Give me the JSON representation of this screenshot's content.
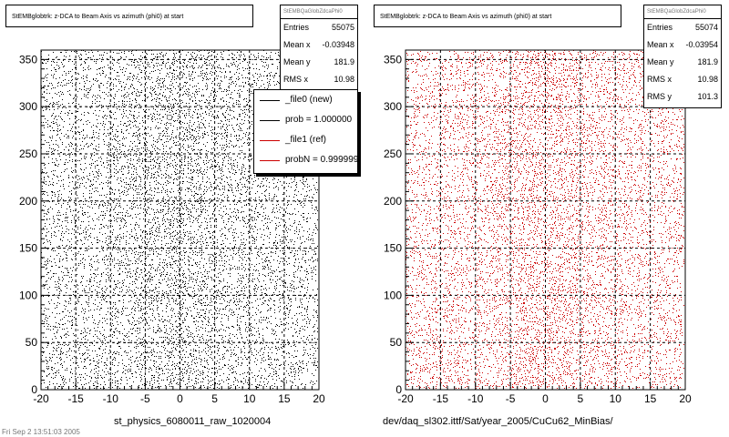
{
  "colors": {
    "new": "#000000",
    "ref": "#cc0000",
    "frame": "#000000"
  },
  "left_panel": {
    "title": "StEMBglobtrk: z-DCA to Beam Axis vs azimuth (phi0) at start",
    "stats_name": "StEMBQaGlobZdcaPhi0",
    "stats": [
      {
        "key": "Entries",
        "value": "55075"
      },
      {
        "key": "Mean x",
        "value": "-0.03948"
      },
      {
        "key": "Mean y",
        "value": "181.9"
      },
      {
        "key": "RMS x",
        "value": "10.98"
      }
    ],
    "legend": [
      {
        "label": "_file0 (new)",
        "color": "#000000"
      },
      {
        "label": "prob = 1.000000",
        "color": "#000000"
      },
      {
        "label": "_file1 (ref)",
        "color": "#cc0000"
      },
      {
        "label": "probN = 0.999999",
        "color": "#cc0000"
      }
    ],
    "footer": "st_physics_6080011_raw_1020004",
    "corner_text": "Fri Sep 2 13:51:03 2005"
  },
  "right_panel": {
    "title": "StEMBglobtrk: z-DCA to Beam Axis vs azimuth (phi0) at start",
    "stats_name": "StEMBQaGlobZdcaPhi0",
    "stats": [
      {
        "key": "Entries",
        "value": "55074"
      },
      {
        "key": "Mean x",
        "value": "-0.03954"
      },
      {
        "key": "Mean y",
        "value": "181.9"
      },
      {
        "key": "RMS x",
        "value": "10.98"
      },
      {
        "key": "RMS y",
        "value": "101.3"
      }
    ],
    "footer": "dev/daq_sl302.ittf/Sat/year_2005/CuCu62_MinBias/"
  },
  "chart_data": [
    {
      "type": "scatter",
      "title": "StEMBglobtrk: z-DCA to Beam Axis vs azimuth (phi0) at start",
      "xlabel": "",
      "ylabel": "",
      "xlim": [
        -20,
        20
      ],
      "ylim": [
        0,
        360
      ],
      "x_ticks": [
        -20,
        -15,
        -10,
        -5,
        0,
        5,
        10,
        15,
        20
      ],
      "y_ticks": [
        0,
        50,
        100,
        150,
        200,
        250,
        300,
        350
      ],
      "grid": true,
      "legend_placement": "top-right",
      "series": [
        {
          "name": "_file0 (new)",
          "color": "#000000",
          "entries": 55075,
          "mean_x": -0.03948,
          "mean_y": 181.9,
          "rms_x": 10.98
        }
      ]
    },
    {
      "type": "scatter",
      "title": "StEMBglobtrk: z-DCA to Beam Axis vs azimuth (phi0) at start",
      "xlabel": "",
      "ylabel": "",
      "xlim": [
        -20,
        20
      ],
      "ylim": [
        0,
        360
      ],
      "x_ticks": [
        -20,
        -15,
        -10,
        -5,
        0,
        5,
        10,
        15,
        20
      ],
      "y_ticks": [
        0,
        50,
        100,
        150,
        200,
        250,
        300,
        350
      ],
      "grid": true,
      "series": [
        {
          "name": "_file1 (ref)",
          "color": "#cc0000",
          "entries": 55074,
          "mean_x": -0.03954,
          "mean_y": 181.9,
          "rms_x": 10.98,
          "rms_y": 101.3
        }
      ]
    }
  ]
}
